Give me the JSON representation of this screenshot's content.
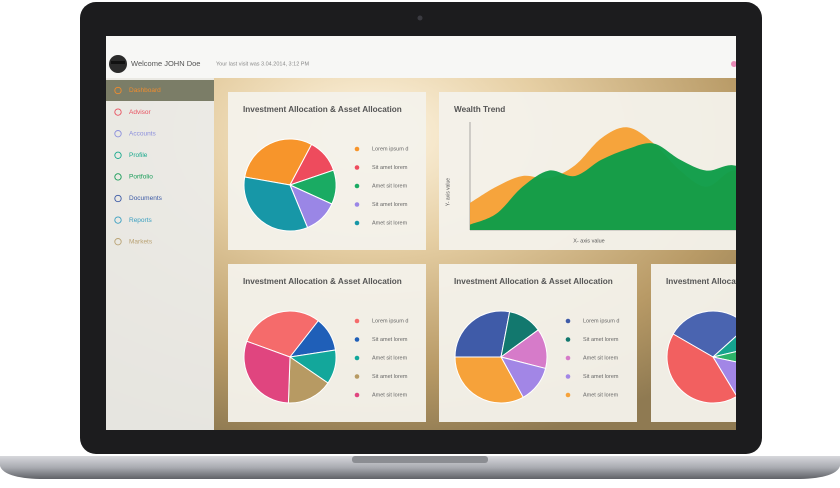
{
  "header": {
    "welcome": "Welcome JOHN Doe",
    "last_visit": "Your last visit was 3.04.2014, 3:12 PM"
  },
  "menu": [
    {
      "label": "Dashboard",
      "color": "#f08c2e"
    },
    {
      "label": "Advisor",
      "color": "#e8505f"
    },
    {
      "label": "Accounts",
      "color": "#8b8fdc"
    },
    {
      "label": "Profile",
      "color": "#17a98c"
    },
    {
      "label": "Portfolio",
      "color": "#179c58"
    },
    {
      "label": "Documents",
      "color": "#3d5ba6"
    },
    {
      "label": "Reports",
      "color": "#3a9fc0"
    },
    {
      "label": "Markets",
      "color": "#b9a273"
    }
  ],
  "panels": [
    {
      "type": "pie",
      "title": "Investment Allocation & Asset Allocation",
      "slices": [
        {
          "label": "Lorem ipsum d",
          "color": "#f7952b",
          "value": 30
        },
        {
          "label": "Sit amet lorem",
          "color": "#ee4b5d",
          "value": 12
        },
        {
          "label": "Amet sit lorem",
          "color": "#1aab63",
          "value": 12
        },
        {
          "label": "Sit amet lorem",
          "color": "#9a86e6",
          "value": 12
        },
        {
          "label": "Amet sit lorem",
          "color": "#1797a7",
          "value": 34
        }
      ]
    },
    {
      "type": "area",
      "title": "Wealth Trend",
      "y_label": "Y- axis value",
      "x_label": "X- axis value",
      "ylim": [
        0,
        100
      ],
      "series": [
        {
          "color": "#f6a136",
          "values": [
            25,
            40,
            50,
            48,
            60,
            85,
            95,
            80,
            55,
            40,
            55,
            48
          ]
        },
        {
          "color": "#0f9d48",
          "values": [
            5,
            15,
            40,
            55,
            50,
            65,
            75,
            80,
            65,
            55,
            60,
            50
          ]
        }
      ]
    },
    {
      "type": "pie",
      "title": "Investment Allocation & Asset Allocation",
      "slices": [
        {
          "label": "Lorem ipsum d",
          "color": "#f56b6b",
          "value": 30
        },
        {
          "label": "Sit amet lorem",
          "color": "#1f5fb8",
          "value": 12
        },
        {
          "label": "Amet sit lorem",
          "color": "#13a79b",
          "value": 12
        },
        {
          "label": "Sit amet lorem",
          "color": "#b79a63",
          "value": 16
        },
        {
          "label": "Amet sit lorem",
          "color": "#e0457f",
          "value": 30
        }
      ]
    },
    {
      "type": "pie",
      "title": "Investment Allocation & Asset Allocation",
      "slices": [
        {
          "label": "Lorem ipsum d",
          "color": "#3f5ba8",
          "value": 28
        },
        {
          "label": "Sit amet lorem",
          "color": "#12786e",
          "value": 12
        },
        {
          "label": "Amet sit lorem",
          "color": "#d67bc9",
          "value": 14
        },
        {
          "label": "Sit amet lorem",
          "color": "#a286e6",
          "value": 13
        },
        {
          "label": "Amet sit lorem",
          "color": "#f6a23a",
          "value": 33
        }
      ]
    },
    {
      "type": "pie",
      "title": "Investment Allocation & Asset Allocation",
      "slices": [
        {
          "color": "#4a64b0",
          "value": 30
        },
        {
          "color": "#15a38f",
          "value": 8
        },
        {
          "color": "#2db36a",
          "value": 7
        },
        {
          "color": "#a286e6",
          "value": 13
        },
        {
          "color": "#f26060",
          "value": 42
        }
      ]
    }
  ]
}
